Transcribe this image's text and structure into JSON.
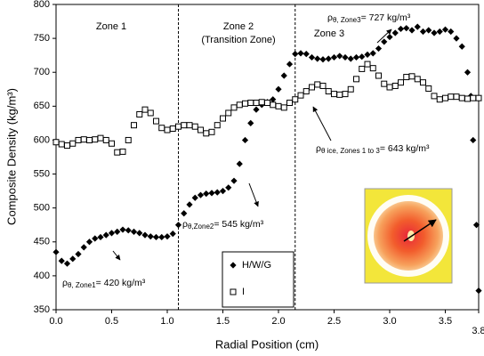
{
  "chart_data": {
    "type": "scatter",
    "y_label": "Composite Density (kg/m³)",
    "x_label": "Radial Position (cm)",
    "xlim": [
      0,
      3.8
    ],
    "ylim": [
      350,
      800
    ],
    "xticks": [
      {
        "value": 0,
        "label": "0.0"
      },
      {
        "value": 0.5,
        "label": "0.5"
      },
      {
        "value": 1,
        "label": "1.0"
      },
      {
        "value": 1.5,
        "label": "1.5"
      },
      {
        "value": 2,
        "label": "2.0"
      },
      {
        "value": 2.5,
        "label": "2.5"
      },
      {
        "value": 3,
        "label": "3.0"
      },
      {
        "value": 3.5,
        "label": "3.5"
      },
      3.8
    ],
    "yticks": [
      350,
      400,
      450,
      500,
      550,
      600,
      650,
      700,
      750,
      800
    ],
    "zone_boundaries": [
      1.1,
      2.15
    ],
    "zone_labels": [
      "Zone 1",
      "Zone 2",
      "(Transition Zone)",
      "Zone 3"
    ],
    "annotations": [
      {
        "symbol": "ρ",
        "sub": "θ, Zone1",
        "rest": "= 420 kg/m³"
      },
      {
        "symbol": "ρ",
        "sub": "θ,Zone2",
        "rest": "= 545 kg/m³"
      },
      {
        "symbol": "ρ",
        "sub": "θ, Zone3",
        "rest": "= 727 kg/m³"
      },
      {
        "symbol": "ρ",
        "sub": "θ ice, Zones 1 to 3",
        "rest": "= 643 kg/m³"
      }
    ],
    "series": [
      {
        "name": "H/W/G",
        "color": "#000000",
        "marker": "diamond",
        "x": [
          0,
          0.05,
          0.1,
          0.15,
          0.2,
          0.25,
          0.3,
          0.35,
          0.4,
          0.45,
          0.5,
          0.55,
          0.6,
          0.65,
          0.7,
          0.75,
          0.8,
          0.85,
          0.9,
          0.95,
          1.0,
          1.05,
          1.1,
          1.15,
          1.2,
          1.25,
          1.3,
          1.35,
          1.4,
          1.45,
          1.5,
          1.55,
          1.6,
          1.65,
          1.7,
          1.75,
          1.8,
          1.85,
          1.9,
          1.95,
          2.0,
          2.05,
          2.1,
          2.15,
          2.2,
          2.25,
          2.3,
          2.35,
          2.4,
          2.45,
          2.5,
          2.55,
          2.6,
          2.65,
          2.7,
          2.75,
          2.8,
          2.85,
          2.9,
          2.95,
          3.0,
          3.05,
          3.1,
          3.15,
          3.2,
          3.25,
          3.3,
          3.35,
          3.4,
          3.45,
          3.5,
          3.55,
          3.6,
          3.65,
          3.7,
          3.73,
          3.75,
          3.78,
          3.8
        ],
        "values": [
          435,
          422,
          418,
          425,
          432,
          442,
          450,
          455,
          457,
          460,
          463,
          465,
          468,
          467,
          465,
          463,
          460,
          458,
          457,
          457,
          458,
          462,
          475,
          492,
          505,
          515,
          519,
          521,
          522,
          523,
          525,
          530,
          540,
          565,
          600,
          625,
          645,
          652,
          656,
          660,
          675,
          695,
          712,
          727,
          728,
          727,
          722,
          720,
          719,
          720,
          722,
          724,
          722,
          720,
          722,
          723,
          726,
          728,
          735,
          745,
          752,
          758,
          764,
          765,
          762,
          767,
          760,
          762,
          758,
          760,
          763,
          760,
          750,
          738,
          700,
          665,
          600,
          475,
          378
        ]
      },
      {
        "name": "I",
        "color": "#000000",
        "marker": "square",
        "x": [
          0,
          0.05,
          0.1,
          0.15,
          0.2,
          0.25,
          0.3,
          0.35,
          0.4,
          0.45,
          0.5,
          0.55,
          0.6,
          0.65,
          0.7,
          0.75,
          0.8,
          0.85,
          0.9,
          0.95,
          1.0,
          1.05,
          1.1,
          1.15,
          1.2,
          1.25,
          1.3,
          1.35,
          1.4,
          1.45,
          1.5,
          1.55,
          1.6,
          1.65,
          1.7,
          1.75,
          1.8,
          1.85,
          1.9,
          1.95,
          2.0,
          2.05,
          2.1,
          2.15,
          2.2,
          2.25,
          2.3,
          2.35,
          2.4,
          2.45,
          2.5,
          2.55,
          2.6,
          2.65,
          2.7,
          2.75,
          2.8,
          2.85,
          2.9,
          2.95,
          3.0,
          3.05,
          3.1,
          3.15,
          3.2,
          3.25,
          3.3,
          3.35,
          3.4,
          3.45,
          3.5,
          3.55,
          3.6,
          3.65,
          3.7,
          3.75,
          3.8
        ],
        "values": [
          597,
          594,
          592,
          595,
          600,
          601,
          600,
          601,
          603,
          600,
          595,
          582,
          583,
          600,
          622,
          638,
          645,
          640,
          628,
          618,
          615,
          617,
          620,
          622,
          622,
          620,
          615,
          610,
          612,
          622,
          632,
          640,
          648,
          652,
          654,
          655,
          655,
          656,
          655,
          652,
          650,
          648,
          655,
          660,
          666,
          672,
          678,
          682,
          680,
          672,
          668,
          667,
          668,
          675,
          690,
          705,
          712,
          706,
          695,
          683,
          678,
          680,
          685,
          693,
          694,
          690,
          685,
          676,
          665,
          660,
          662,
          664,
          664,
          662,
          661,
          662,
          662
        ]
      }
    ]
  }
}
